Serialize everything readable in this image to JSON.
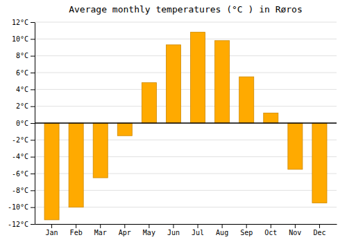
{
  "chart_data": {
    "type": "bar",
    "title": "Average monthly temperatures (°C ) in Røros",
    "categories": [
      "Jan",
      "Feb",
      "Mar",
      "Apr",
      "May",
      "Jun",
      "Jul",
      "Aug",
      "Sep",
      "Oct",
      "Nov",
      "Dec"
    ],
    "values": [
      -11.5,
      -10.0,
      -6.5,
      -1.5,
      4.8,
      9.3,
      10.8,
      9.8,
      5.5,
      1.2,
      -5.5,
      -9.5
    ],
    "color": "#FFAA00",
    "ylim": [
      -12,
      12
    ],
    "yticks": [
      {
        "value": -12,
        "label": "-12°C"
      },
      {
        "value": -10,
        "label": "-10°C"
      },
      {
        "value": -8,
        "label": "-8°C"
      },
      {
        "value": -6,
        "label": "-6°C"
      },
      {
        "value": -4,
        "label": "-4°C"
      },
      {
        "value": -2,
        "label": "-2°C"
      },
      {
        "value": 0,
        "label": "0°C"
      },
      {
        "value": 2,
        "label": "2°C"
      },
      {
        "value": 4,
        "label": "4°C"
      },
      {
        "value": 6,
        "label": "6°C"
      },
      {
        "value": 8,
        "label": "8°C"
      },
      {
        "value": 10,
        "label": "10°C"
      },
      {
        "value": 12,
        "label": "12°C"
      }
    ],
    "grid": true
  }
}
